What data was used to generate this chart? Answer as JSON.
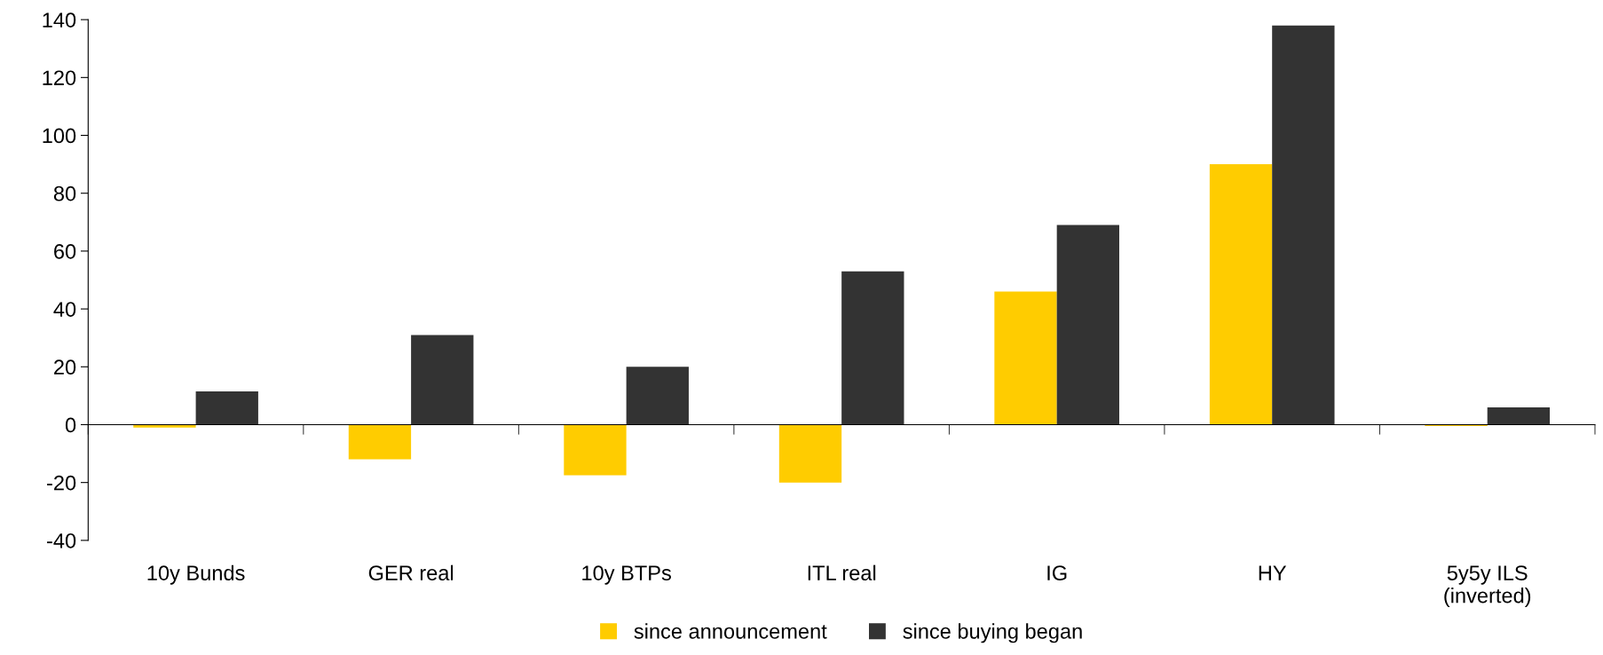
{
  "chart_data": {
    "type": "bar",
    "categories": [
      "10y Bunds",
      "GER real",
      "10y BTPs",
      "ITL real",
      "IG",
      "HY",
      "5y5y ILS\n(inverted)"
    ],
    "series": [
      {
        "name": "since announcement",
        "color": "#ffcc00",
        "values": [
          -1,
          -12,
          -17.5,
          -20,
          46,
          90,
          -0.5
        ]
      },
      {
        "name": "since buying began",
        "color": "#333333",
        "values": [
          11.5,
          31,
          20,
          53,
          69,
          138,
          6
        ]
      }
    ],
    "ylim": [
      -40,
      140
    ],
    "yticks": [
      -40,
      -20,
      0,
      20,
      40,
      60,
      80,
      100,
      120,
      140
    ],
    "legend": "bottom"
  }
}
